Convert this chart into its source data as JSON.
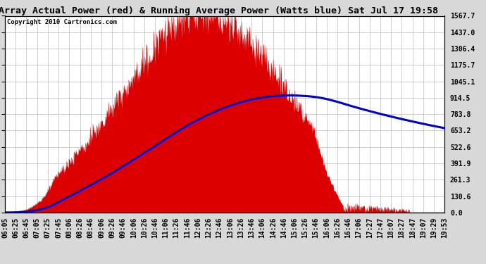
{
  "title": "East Array Actual Power (red) & Running Average Power (Watts blue) Sat Jul 17 19:58",
  "copyright": "Copyright 2010 Cartronics.com",
  "ylabel_right_ticks": [
    0.0,
    130.6,
    261.3,
    391.9,
    522.6,
    653.2,
    783.8,
    914.5,
    1045.1,
    1175.7,
    1306.4,
    1437.0,
    1567.7
  ],
  "ymax": 1567.7,
  "ymin": 0.0,
  "bg_color": "#d8d8d8",
  "plot_bg_color": "#ffffff",
  "actual_color": "#dd0000",
  "avg_color": "#0000cc",
  "grid_color": "#bbbbbb",
  "title_fontsize": 9.5,
  "copyright_fontsize": 6.5,
  "tick_fontsize": 7,
  "x_tick_labels": [
    "06:05",
    "06:25",
    "06:45",
    "07:05",
    "07:25",
    "07:45",
    "08:06",
    "08:26",
    "08:46",
    "09:06",
    "09:26",
    "09:46",
    "10:06",
    "10:26",
    "10:46",
    "11:06",
    "11:26",
    "11:46",
    "12:06",
    "12:26",
    "12:46",
    "13:06",
    "13:26",
    "13:46",
    "14:06",
    "14:26",
    "14:46",
    "15:06",
    "15:26",
    "15:46",
    "16:06",
    "16:26",
    "16:46",
    "17:06",
    "17:27",
    "17:47",
    "18:07",
    "18:27",
    "18:47",
    "19:07",
    "19:29",
    "19:53"
  ],
  "n_points": 840
}
